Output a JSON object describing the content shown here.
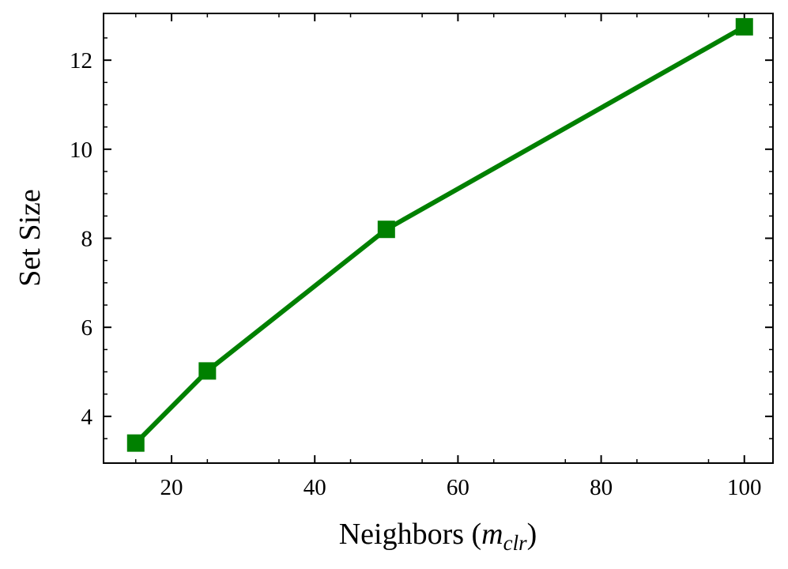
{
  "chart_data": {
    "type": "line",
    "xlabel": "Neighbors",
    "xlabel_symbol": "m",
    "xlabel_subscript": "clr",
    "ylabel": "Set Size",
    "xlim": [
      10.5,
      104
    ],
    "ylim": [
      2.95,
      13.05
    ],
    "x_ticks": [
      20,
      40,
      60,
      80,
      100
    ],
    "y_ticks": [
      4,
      6,
      8,
      10,
      12
    ],
    "grid": false,
    "series": [
      {
        "color": "#008000",
        "marker": "square",
        "x": [
          15,
          25,
          50,
          100
        ],
        "values": [
          3.4,
          5.02,
          8.2,
          12.75
        ]
      }
    ]
  }
}
